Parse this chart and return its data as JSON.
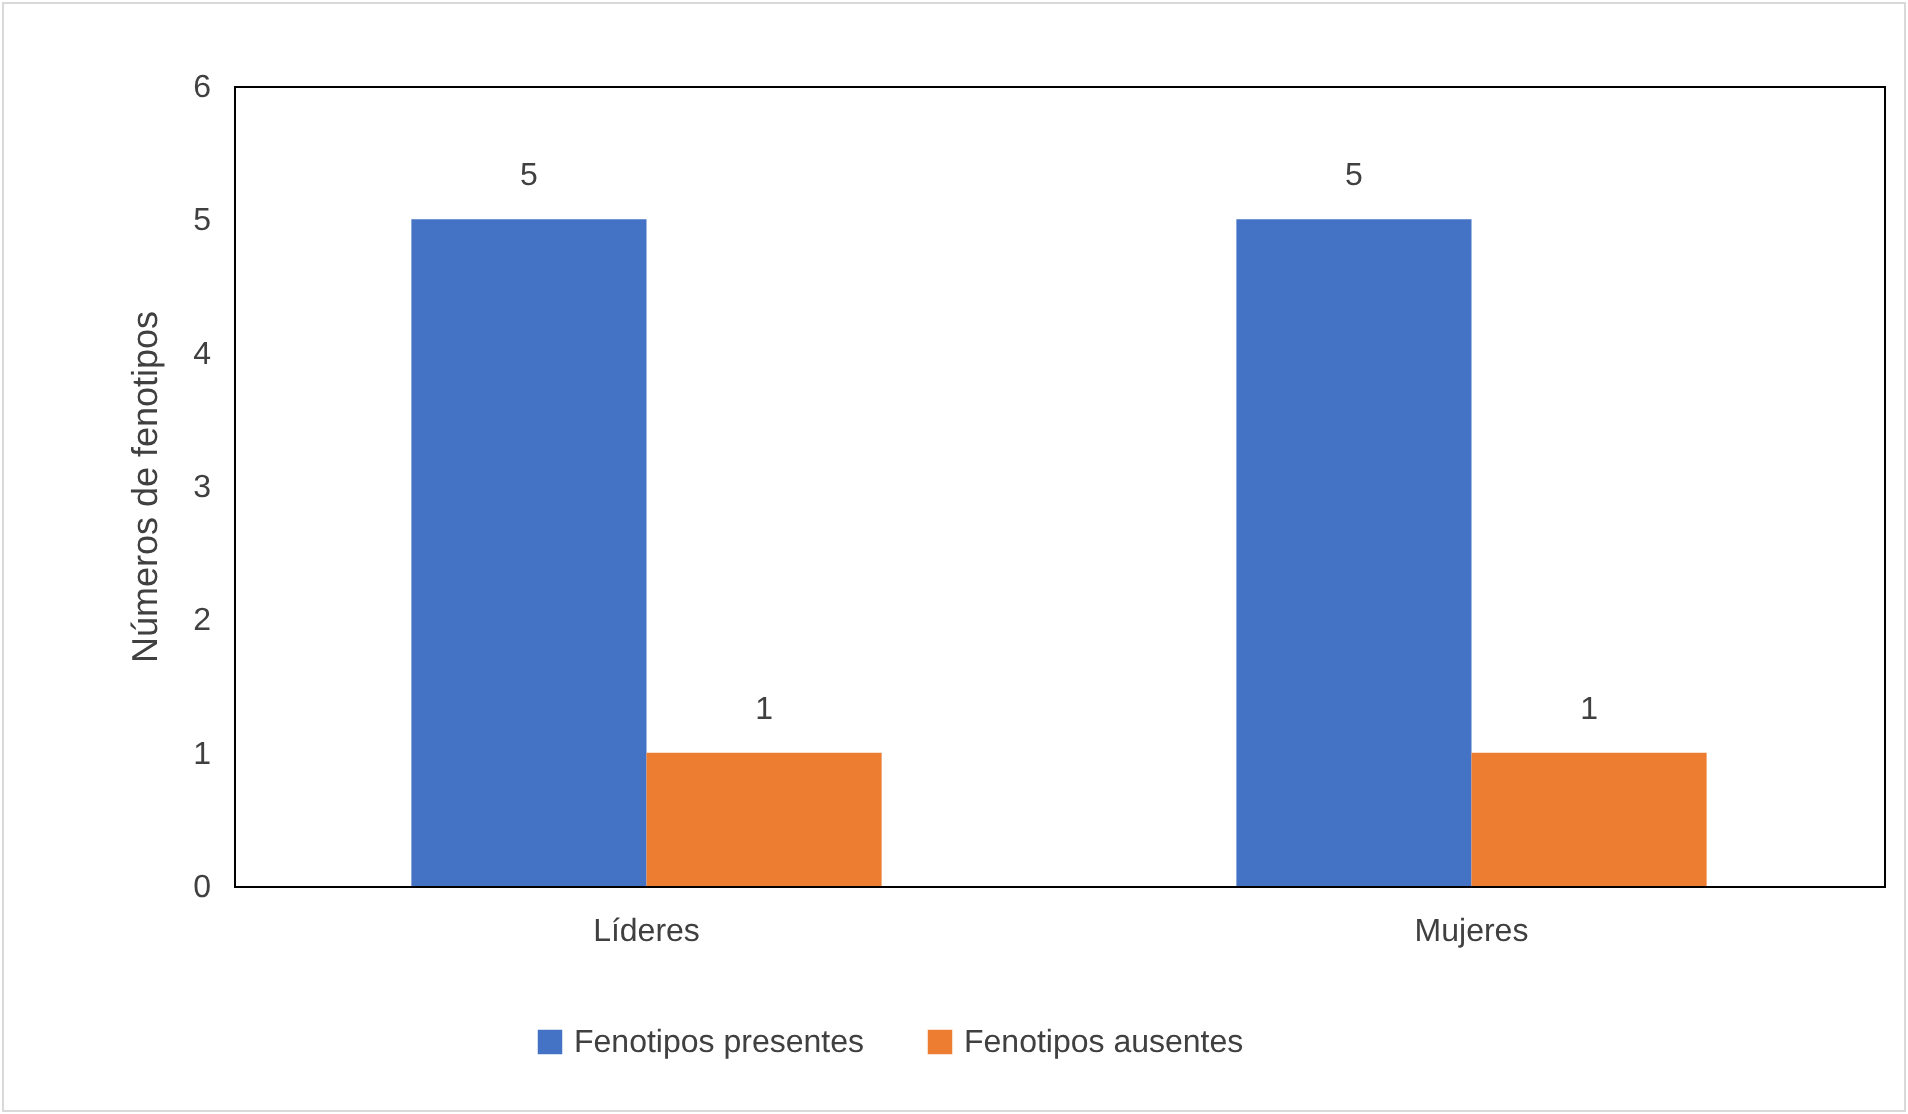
{
  "chart_data": {
    "type": "bar",
    "categories": [
      "Líderes",
      "Mujeres"
    ],
    "ylabel": "Números de fenotipos",
    "series": [
      {
        "name": "Fenotipos presentes",
        "color": "#4472c4",
        "values": [
          5,
          5
        ]
      },
      {
        "name": "Fenotipos ausentes",
        "color": "#ed7d31",
        "values": [
          1,
          1
        ]
      }
    ],
    "ylim": [
      0,
      6
    ],
    "yticks": [
      0,
      1,
      2,
      3,
      4,
      5,
      6
    ],
    "grid": false,
    "legend": "bottom",
    "data_labels": true
  }
}
